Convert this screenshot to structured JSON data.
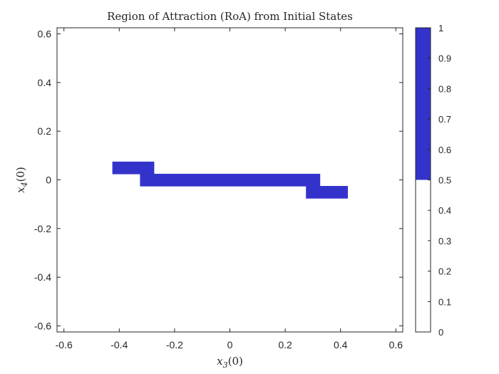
{
  "chart_data": {
    "type": "heatmap",
    "title": "Region of Attraction (RoA) from Initial States",
    "xlabel": "x_3(0)",
    "xlabel_main": "x",
    "xlabel_sub": "3",
    "xlabel_suffix": "(0)",
    "ylabel": "x_4(0)",
    "ylabel_main": "x",
    "ylabel_sub": "4",
    "ylabel_suffix": "(0)",
    "xlim": [
      -0.625,
      0.625
    ],
    "ylim": [
      -0.625,
      0.625
    ],
    "xticks": [
      -0.6,
      -0.4,
      -0.2,
      0,
      0.2,
      0.4,
      0.6
    ],
    "xtick_labels": [
      "-0.6",
      "-0.4",
      "-0.2",
      "0",
      "0.2",
      "0.4",
      "0.6"
    ],
    "yticks": [
      -0.6,
      -0.4,
      -0.2,
      0,
      0.2,
      0.4,
      0.6
    ],
    "ytick_labels": [
      "-0.6",
      "-0.4",
      "-0.2",
      "0",
      "0.2",
      "0.4",
      "0.6"
    ],
    "grid": false,
    "colormap": {
      "below_threshold": "#ffffff",
      "above_threshold": "#3333cc",
      "threshold": 0.5
    },
    "colorbar": {
      "range": [
        0,
        1
      ],
      "ticks": [
        0,
        0.1,
        0.2,
        0.3,
        0.4,
        0.5,
        0.6,
        0.7,
        0.8,
        0.9,
        1
      ],
      "tick_labels": [
        "0",
        "0.1",
        "0.2",
        "0.3",
        "0.4",
        "0.5",
        "0.6",
        "0.7",
        "0.8",
        "0.9",
        "1"
      ]
    },
    "cell_size": 0.05,
    "roa_cells_value_1": [
      {
        "x": -0.4,
        "y": 0.05
      },
      {
        "x": -0.35,
        "y": 0.05
      },
      {
        "x": -0.3,
        "y": 0.05
      },
      {
        "x": -0.3,
        "y": 0.0
      },
      {
        "x": -0.25,
        "y": 0.0
      },
      {
        "x": -0.2,
        "y": 0.0
      },
      {
        "x": -0.15,
        "y": 0.0
      },
      {
        "x": -0.1,
        "y": 0.0
      },
      {
        "x": -0.05,
        "y": 0.0
      },
      {
        "x": 0.0,
        "y": 0.0
      },
      {
        "x": 0.05,
        "y": 0.0
      },
      {
        "x": 0.1,
        "y": 0.0
      },
      {
        "x": 0.15,
        "y": 0.0
      },
      {
        "x": 0.2,
        "y": 0.0
      },
      {
        "x": 0.25,
        "y": 0.0
      },
      {
        "x": 0.3,
        "y": 0.0
      },
      {
        "x": 0.3,
        "y": -0.05
      },
      {
        "x": 0.35,
        "y": -0.05
      },
      {
        "x": 0.4,
        "y": -0.05
      }
    ]
  }
}
